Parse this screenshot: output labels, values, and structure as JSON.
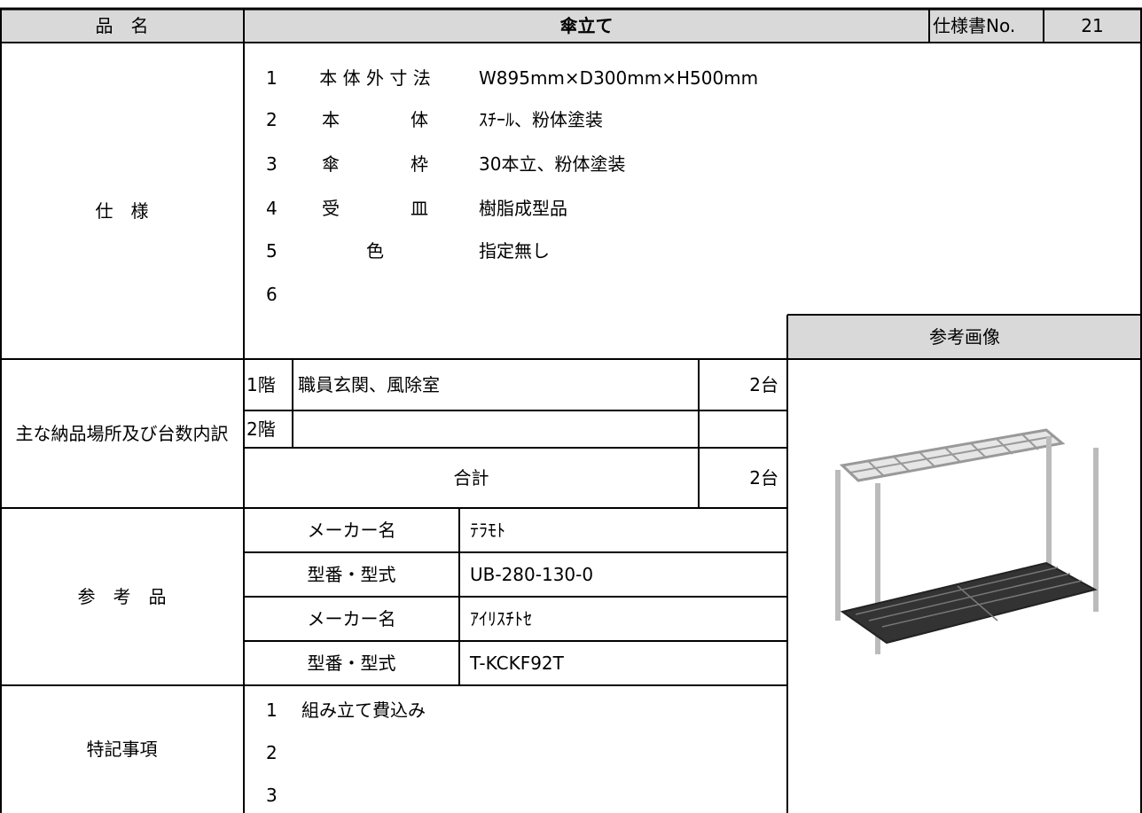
{
  "header": {
    "item_label": "品　名",
    "item_name": "傘立て",
    "spec_no_label": "仕様書No.",
    "spec_no": "21"
  },
  "spec": {
    "label": "仕　様",
    "items": [
      {
        "no": "1",
        "name": "本 体 外 寸 法",
        "value": "W895mm×D300mm×H500mm"
      },
      {
        "no": "2",
        "name": "本　　　　体",
        "value": "ｽﾁｰﾙ、粉体塗装"
      },
      {
        "no": "3",
        "name": "傘　　　　枠",
        "value": "30本立、粉体塗装"
      },
      {
        "no": "4",
        "name": "受　　　　皿",
        "value": "樹脂成型品"
      },
      {
        "no": "5",
        "name": "色",
        "value": "指定無し"
      },
      {
        "no": "6"
      }
    ]
  },
  "delivery": {
    "label": "主な納品場所及び台数内訳",
    "rows": [
      {
        "floor": "1階",
        "place": "職員玄関、風除室",
        "count": "2台"
      },
      {
        "floor": "2階"
      }
    ],
    "total_label": "合計",
    "total": "2台"
  },
  "reference": {
    "label": "参　考　品",
    "rows": [
      {
        "label": "メーカー名",
        "value": "ﾃﾗﾓﾄ"
      },
      {
        "label": "型番・型式",
        "value": "UB-280-130-0"
      },
      {
        "label": "メーカー名",
        "value": "ｱｲﾘｽﾁﾄｾ"
      },
      {
        "label": "型番・型式",
        "value": "T-KCKF92T"
      }
    ]
  },
  "image_label": "参考画像",
  "notes": {
    "label": "特記事項",
    "items": [
      {
        "no": "1",
        "text": "組み立て費込み"
      },
      {
        "no": "2"
      },
      {
        "no": "3"
      }
    ]
  }
}
